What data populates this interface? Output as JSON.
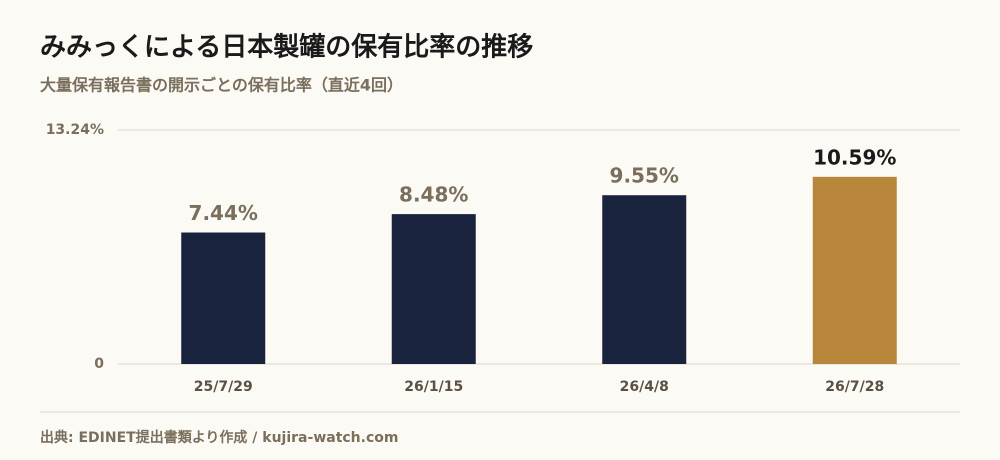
{
  "chart_data": {
    "type": "bar",
    "title": "みみっくによる日本製罐の保有比率の推移",
    "subtitle": "大量保有報告書の開示ごとの保有比率（直近4回）",
    "categories": [
      "25/7/29",
      "26/1/15",
      "26/4/8",
      "26/7/28"
    ],
    "values": [
      7.44,
      8.48,
      9.55,
      10.59
    ],
    "value_labels": [
      "7.44%",
      "8.48%",
      "9.55%",
      "10.59%"
    ],
    "colors": [
      "#1a233d",
      "#1a233d",
      "#1a233d",
      "#b8863b"
    ],
    "value_label_colors": [
      "#7a6e5c",
      "#7a6e5c",
      "#7a6e5c",
      "#1a1a1a"
    ],
    "ylim": [
      0,
      13.24
    ],
    "yticks": [
      0,
      {
        "value": 13.24,
        "label": "13.24%"
      }
    ],
    "grid": true,
    "source": "出典: EDINET提出書類より作成 / kujira-watch.com"
  }
}
